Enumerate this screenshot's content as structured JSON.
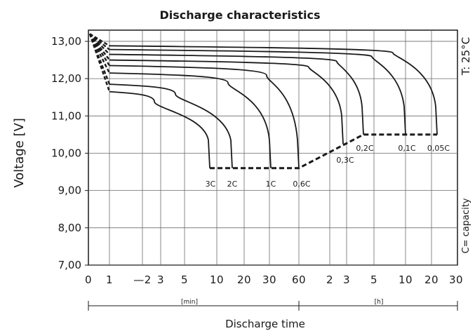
{
  "chart_data": {
    "type": "line",
    "title": "Discharge characteristics",
    "ylabel": "Voltage  [V]",
    "xlabel": "Discharge time",
    "temperature_note": "T: 25°C",
    "capacity_note": "C= capacity",
    "x_unit_min": "[min]",
    "x_unit_h": "[h]",
    "ylim": [
      7.0,
      13.3
    ],
    "y_ticks": [
      "13,00",
      "12,00",
      "11,00",
      "10,00",
      "9,00",
      "8,00",
      "7,00"
    ],
    "y_tick_values": [
      13,
      12,
      11,
      10,
      9,
      8,
      7
    ],
    "x_tick_labels": [
      "0",
      "1",
      "—2",
      "3",
      "5",
      "10",
      "20",
      "30",
      "60",
      "2",
      "3",
      "5",
      "10",
      "20",
      "30"
    ],
    "x_axis_note": "minutes 0–60, then hours 2–30",
    "grid": true,
    "series": [
      {
        "name": "3C",
        "start_v": 11.65,
        "end_v": 9.6,
        "end_time": "9 min"
      },
      {
        "name": "2C",
        "start_v": 11.85,
        "end_v": 9.6,
        "end_time": "14 min"
      },
      {
        "name": "1C",
        "start_v": 12.15,
        "end_v": 9.6,
        "end_time": "32 min"
      },
      {
        "name": "0,6C",
        "start_v": 12.35,
        "end_v": 9.6,
        "end_time": "60 min"
      },
      {
        "name": "0,3C",
        "start_v": 12.5,
        "end_v": 10.25,
        "end_time": "2.8 h"
      },
      {
        "name": "0,2C",
        "start_v": 12.65,
        "end_v": 10.5,
        "end_time": "4.5 h"
      },
      {
        "name": "0,1C",
        "start_v": 12.78,
        "end_v": 10.5,
        "end_time": "10 h"
      },
      {
        "name": "0,05C",
        "start_v": 12.88,
        "end_v": 10.5,
        "end_time": "20 h"
      }
    ],
    "cutoff_line": [
      {
        "time": "9 min",
        "v": 9.6
      },
      {
        "time": "60 min",
        "v": 9.6
      },
      {
        "time": "4.5 h",
        "v": 10.5
      },
      {
        "time": "20 h",
        "v": 10.5
      }
    ]
  }
}
